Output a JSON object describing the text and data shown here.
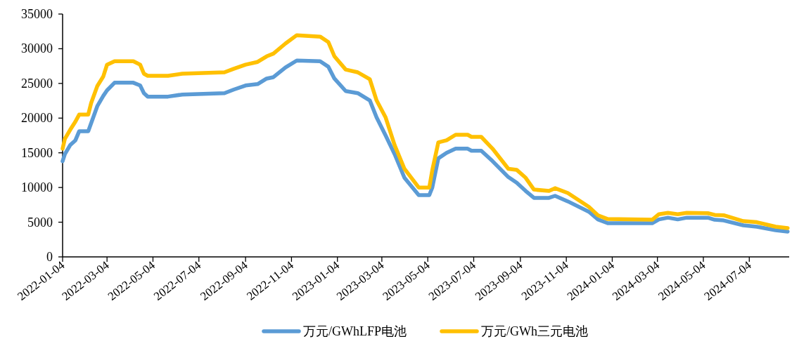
{
  "chart_data": {
    "type": "line",
    "x": [
      "2022-01-04",
      "2022-01-07",
      "2022-01-14",
      "2022-01-21",
      "2022-01-26",
      "2022-02-07",
      "2022-02-11",
      "2022-02-19",
      "2022-02-27",
      "2022-03-04",
      "2022-03-14",
      "2022-04-08",
      "2022-04-17",
      "2022-04-22",
      "2022-04-27",
      "2022-05-24",
      "2022-06-12",
      "2022-08-07",
      "2022-08-19",
      "2022-09-04",
      "2022-09-20",
      "2022-10-02",
      "2022-10-11",
      "2022-10-27",
      "2022-11-11",
      "2022-12-12",
      "2022-12-23",
      "2022-12-31",
      "2023-01-15",
      "2023-01-31",
      "2023-02-16",
      "2023-02-25",
      "2023-03-09",
      "2023-03-21",
      "2023-04-03",
      "2023-04-22",
      "2023-05-06",
      "2023-05-10",
      "2023-05-18",
      "2023-05-29",
      "2023-06-10",
      "2023-06-26",
      "2023-07-01",
      "2023-07-14",
      "2023-07-29",
      "2023-08-19",
      "2023-08-30",
      "2023-09-11",
      "2023-09-22",
      "2023-10-12",
      "2023-10-20",
      "2023-11-06",
      "2023-12-04",
      "2023-12-16",
      "2023-12-29",
      "2024-02-26",
      "2024-03-06",
      "2024-03-18",
      "2024-03-31",
      "2024-04-12",
      "2024-05-10",
      "2024-05-19",
      "2024-05-31",
      "2024-06-26",
      "2024-07-14",
      "2024-08-08",
      "2024-08-24"
    ],
    "series": [
      {
        "name": "万元/GWhLFP电池",
        "color": "#5b9bd5",
        "values": [
          13800,
          14800,
          16100,
          16800,
          18100,
          18100,
          19300,
          21700,
          23200,
          24000,
          25100,
          25100,
          24700,
          23600,
          23100,
          23100,
          23400,
          23600,
          24100,
          24700,
          24900,
          25700,
          25900,
          27300,
          28300,
          28200,
          27400,
          25700,
          23900,
          23600,
          22550,
          20100,
          17500,
          14800,
          11400,
          8900,
          8900,
          10000,
          14200,
          15000,
          15600,
          15600,
          15300,
          15300,
          13800,
          11500,
          10700,
          9500,
          8500,
          8500,
          8800,
          8000,
          6500,
          5400,
          4850,
          4850,
          5400,
          5650,
          5400,
          5650,
          5650,
          5350,
          5250,
          4550,
          4350,
          3850,
          3650
        ]
      },
      {
        "name": "万元/GWh三元电池",
        "color": "#ffc000",
        "values": [
          15600,
          17000,
          18300,
          19500,
          20500,
          20500,
          22200,
          24600,
          26000,
          27700,
          28200,
          28200,
          27700,
          26400,
          26100,
          26100,
          26400,
          26600,
          27100,
          27700,
          28100,
          28900,
          29300,
          30750,
          31950,
          31750,
          30950,
          28900,
          27000,
          26600,
          25600,
          22550,
          20100,
          16100,
          12700,
          10000,
          10000,
          12500,
          16500,
          16800,
          17600,
          17600,
          17300,
          17300,
          15600,
          12700,
          12550,
          11400,
          9700,
          9500,
          9900,
          9200,
          7200,
          6000,
          5450,
          5350,
          6150,
          6350,
          6150,
          6350,
          6300,
          6050,
          6000,
          5150,
          5000,
          4350,
          4150
        ]
      }
    ],
    "xlim": [
      "2022-01-04",
      "2024-08-26"
    ],
    "xticks": [
      "2022-01-04",
      "2022-03-04",
      "2022-05-04",
      "2022-07-04",
      "2022-09-04",
      "2022-11-04",
      "2023-01-04",
      "2023-03-04",
      "2023-05-04",
      "2023-07-04",
      "2023-09-04",
      "2023-11-04",
      "2024-01-04",
      "2024-03-04",
      "2024-05-04",
      "2024-07-04"
    ],
    "ylim": [
      0,
      35000
    ],
    "yticks": [
      0,
      5000,
      10000,
      15000,
      20000,
      25000,
      30000,
      35000
    ],
    "legend": "bottom",
    "grid": false,
    "marker": "none",
    "line_style": "solid"
  }
}
